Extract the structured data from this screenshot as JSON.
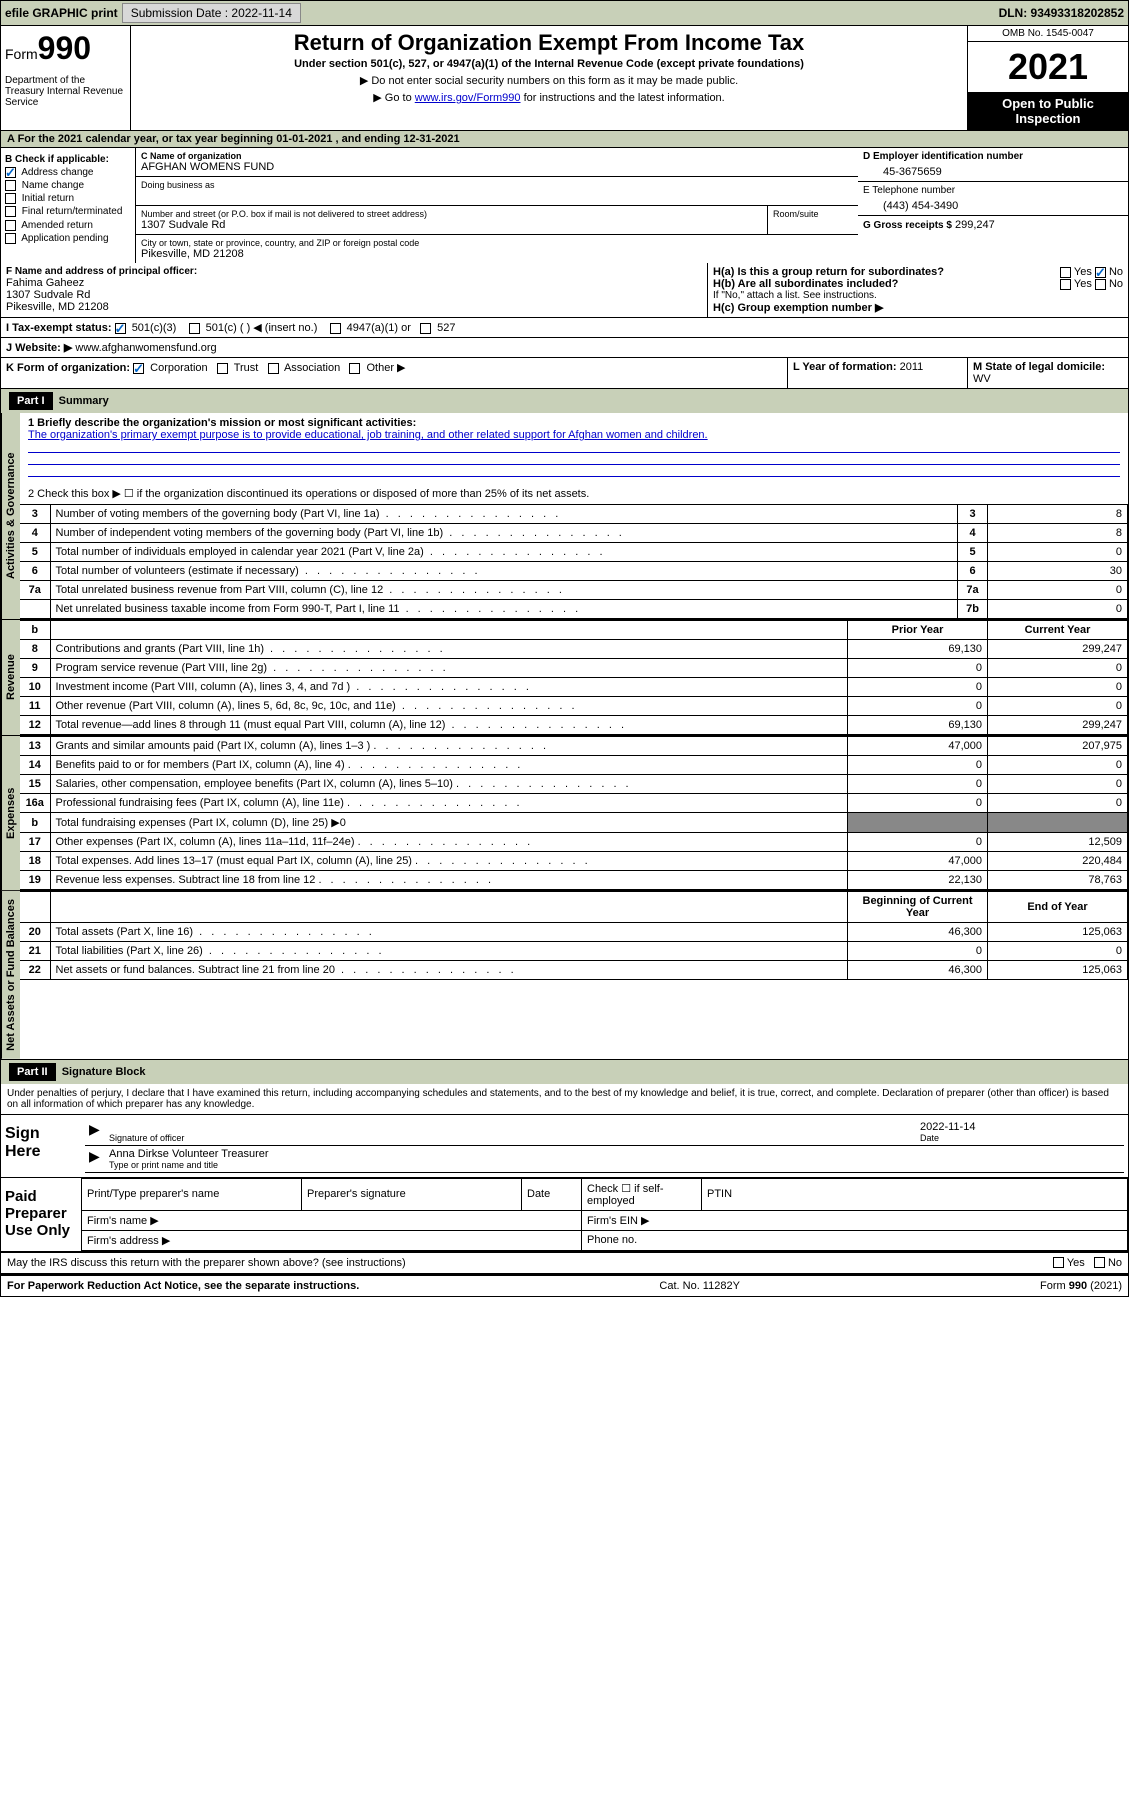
{
  "topbar": {
    "efile_label": "efile GRAPHIC print",
    "submission_label": "Submission Date : 2022-11-14",
    "dln_label": "DLN: 93493318202852"
  },
  "header": {
    "form_prefix": "Form",
    "form_number": "990",
    "dept": "Department of the Treasury Internal Revenue Service",
    "title": "Return of Organization Exempt From Income Tax",
    "subtitle": "Under section 501(c), 527, or 4947(a)(1) of the Internal Revenue Code (except private foundations)",
    "inst1": "▶ Do not enter social security numbers on this form as it may be made public.",
    "inst2_prefix": "▶ Go to ",
    "inst2_link": "www.irs.gov/Form990",
    "inst2_suffix": " for instructions and the latest information.",
    "omb": "OMB No. 1545-0047",
    "year": "2021",
    "open": "Open to Public Inspection"
  },
  "section_a": "A For the 2021 calendar year, or tax year beginning 01-01-2021    , and ending 12-31-2021",
  "box_b": {
    "label": "B Check if applicable:",
    "items": [
      {
        "label": "Address change",
        "checked": true
      },
      {
        "label": "Name change",
        "checked": false
      },
      {
        "label": "Initial return",
        "checked": false
      },
      {
        "label": "Final return/terminated",
        "checked": false
      },
      {
        "label": "Amended return",
        "checked": false
      },
      {
        "label": "Application pending",
        "checked": false
      }
    ]
  },
  "box_c": {
    "name_label": "C Name of organization",
    "name": "AFGHAN WOMENS FUND",
    "dba_label": "Doing business as",
    "addr_label": "Number and street (or P.O. box if mail is not delivered to street address)",
    "room_label": "Room/suite",
    "addr": "1307 Sudvale Rd",
    "city_label": "City or town, state or province, country, and ZIP or foreign postal code",
    "city": "Pikesville, MD  21208"
  },
  "box_d": {
    "label": "D Employer identification number",
    "value": "45-3675659"
  },
  "box_e": {
    "label": "E Telephone number",
    "value": "(443) 454-3490"
  },
  "box_g": {
    "label": "G Gross receipts $",
    "value": "299,247"
  },
  "box_f": {
    "label": "F Name and address of principal officer:",
    "name": "Fahima Gaheez",
    "addr1": "1307 Sudvale Rd",
    "addr2": "Pikesville, MD  21208"
  },
  "box_h": {
    "ha_label": "H(a)  Is this a group return for subordinates?",
    "ha_yes": "Yes",
    "ha_no": "No",
    "hb_label": "H(b)  Are all subordinates included?",
    "hb_yes": "Yes",
    "hb_no": "No",
    "hb_note": "If \"No,\" attach a list. See instructions.",
    "hc_label": "H(c)  Group exemption number ▶"
  },
  "box_i": {
    "label": "I    Tax-exempt status:",
    "opts": [
      "501(c)(3)",
      "501(c) (  ) ◀ (insert no.)",
      "4947(a)(1) or",
      "527"
    ]
  },
  "box_j": {
    "label": "J   Website: ▶",
    "value": "www.afghanwomensfund.org"
  },
  "box_k": {
    "label": "K Form of organization:",
    "opts": [
      "Corporation",
      "Trust",
      "Association",
      "Other ▶"
    ]
  },
  "box_l": {
    "label": "L Year of formation:",
    "value": "2011"
  },
  "box_m": {
    "label": "M State of legal domicile:",
    "value": "WV"
  },
  "part1": {
    "header": "Part I",
    "title": "Summary",
    "line1_label": "1  Briefly describe the organization's mission or most significant activities:",
    "line1_text": "The organization's primary exempt purpose is to provide educational, job training, and other related support for Afghan women and children.",
    "line2_label": "2   Check this box ▶ ☐  if the organization discontinued its operations or disposed of more than 25% of its net assets.",
    "groups": {
      "governance": "Activities & Governance",
      "revenue": "Revenue",
      "expenses": "Expenses",
      "netassets": "Net Assets or Fund Balances"
    },
    "gov_lines": [
      {
        "n": "3",
        "desc": "Number of voting members of the governing body (Part VI, line 1a)",
        "box": "3",
        "val": "8"
      },
      {
        "n": "4",
        "desc": "Number of independent voting members of the governing body (Part VI, line 1b)",
        "box": "4",
        "val": "8"
      },
      {
        "n": "5",
        "desc": "Total number of individuals employed in calendar year 2021 (Part V, line 2a)",
        "box": "5",
        "val": "0"
      },
      {
        "n": "6",
        "desc": "Total number of volunteers (estimate if necessary)",
        "box": "6",
        "val": "30"
      },
      {
        "n": "7a",
        "desc": "Total unrelated business revenue from Part VIII, column (C), line 12",
        "box": "7a",
        "val": "0"
      },
      {
        "n": "",
        "desc": "Net unrelated business taxable income from Form 990-T, Part I, line 11",
        "box": "7b",
        "val": "0"
      }
    ],
    "col_headers": {
      "b": "b",
      "prior": "Prior Year",
      "current": "Current Year"
    },
    "rev_lines": [
      {
        "n": "8",
        "desc": "Contributions and grants (Part VIII, line 1h)",
        "prior": "69,130",
        "cur": "299,247"
      },
      {
        "n": "9",
        "desc": "Program service revenue (Part VIII, line 2g)",
        "prior": "0",
        "cur": "0"
      },
      {
        "n": "10",
        "desc": "Investment income (Part VIII, column (A), lines 3, 4, and 7d )",
        "prior": "0",
        "cur": "0"
      },
      {
        "n": "11",
        "desc": "Other revenue (Part VIII, column (A), lines 5, 6d, 8c, 9c, 10c, and 11e)",
        "prior": "0",
        "cur": "0"
      },
      {
        "n": "12",
        "desc": "Total revenue—add lines 8 through 11 (must equal Part VIII, column (A), line 12)",
        "prior": "69,130",
        "cur": "299,247"
      }
    ],
    "exp_lines": [
      {
        "n": "13",
        "desc": "Grants and similar amounts paid (Part IX, column (A), lines 1–3 )",
        "prior": "47,000",
        "cur": "207,975"
      },
      {
        "n": "14",
        "desc": "Benefits paid to or for members (Part IX, column (A), line 4)",
        "prior": "0",
        "cur": "0"
      },
      {
        "n": "15",
        "desc": "Salaries, other compensation, employee benefits (Part IX, column (A), lines 5–10)",
        "prior": "0",
        "cur": "0"
      },
      {
        "n": "16a",
        "desc": "Professional fundraising fees (Part IX, column (A), line 11e)",
        "prior": "0",
        "cur": "0"
      },
      {
        "n": "b",
        "desc": "Total fundraising expenses (Part IX, column (D), line 25) ▶0",
        "prior": "",
        "cur": "",
        "gray": true
      },
      {
        "n": "17",
        "desc": "Other expenses (Part IX, column (A), lines 11a–11d, 11f–24e)",
        "prior": "0",
        "cur": "12,509"
      },
      {
        "n": "18",
        "desc": "Total expenses. Add lines 13–17 (must equal Part IX, column (A), line 25)",
        "prior": "47,000",
        "cur": "220,484"
      },
      {
        "n": "19",
        "desc": "Revenue less expenses. Subtract line 18 from line 12",
        "prior": "22,130",
        "cur": "78,763"
      }
    ],
    "na_headers": {
      "beg": "Beginning of Current Year",
      "end": "End of Year"
    },
    "na_lines": [
      {
        "n": "20",
        "desc": "Total assets (Part X, line 16)",
        "prior": "46,300",
        "cur": "125,063"
      },
      {
        "n": "21",
        "desc": "Total liabilities (Part X, line 26)",
        "prior": "0",
        "cur": "0"
      },
      {
        "n": "22",
        "desc": "Net assets or fund balances. Subtract line 21 from line 20",
        "prior": "46,300",
        "cur": "125,063"
      }
    ]
  },
  "part2": {
    "header": "Part II",
    "title": "Signature Block",
    "perjury": "Under penalties of perjury, I declare that I have examined this return, including accompanying schedules and statements, and to the best of my knowledge and belief, it is true, correct, and complete. Declaration of preparer (other than officer) is based on all information of which preparer has any knowledge.",
    "sign_here": "Sign Here",
    "sig_officer": "Signature of officer",
    "sig_date": "2022-11-14",
    "date_label": "Date",
    "signer_name": "Anna Dirkse  Volunteer Treasurer",
    "signer_label": "Type or print name and title",
    "paid": "Paid Preparer Use Only",
    "prep_name": "Print/Type preparer's name",
    "prep_sig": "Preparer's signature",
    "prep_date": "Date",
    "prep_check": "Check ☐ if self-employed",
    "ptin": "PTIN",
    "firm_name": "Firm's name    ▶",
    "firm_ein": "Firm's EIN ▶",
    "firm_addr": "Firm's address ▶",
    "phone": "Phone no."
  },
  "footer": {
    "discuss": "May the IRS discuss this return with the preparer shown above? (see instructions)",
    "yes": "Yes",
    "no": "No",
    "paperwork": "For Paperwork Reduction Act Notice, see the separate instructions.",
    "catno": "Cat. No. 11282Y",
    "formno": "Form 990 (2021)"
  }
}
